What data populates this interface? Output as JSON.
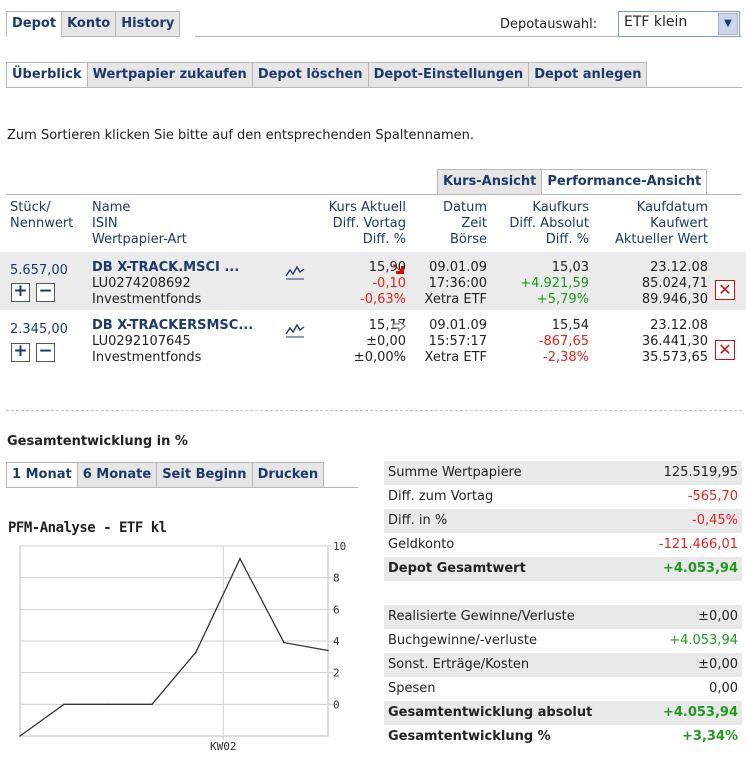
{
  "top_tabs": [
    "Depot",
    "Konto",
    "History"
  ],
  "depot_select": {
    "label": "Depotauswahl:",
    "value": "ETF klein"
  },
  "sub_tabs": [
    "Überblick",
    "Wertpapier zukaufen",
    "Depot löschen",
    "Depot-Einstellungen",
    "Depot anlegen"
  ],
  "sort_hint": "Zum Sortieren klicken Sie bitte auf den entsprechenden Spaltennamen.",
  "view_tabs": [
    "Kurs-Ansicht",
    "Performance-Ansicht"
  ],
  "headers": {
    "c1": [
      "Stück/",
      "Nennwert"
    ],
    "c2": [
      "Name",
      "ISIN",
      "Wertpapier-Art"
    ],
    "c3": [
      "Kurs Aktuell",
      "Diff. Vortag",
      "Diff. %"
    ],
    "c4": [
      "Datum",
      "Zeit",
      "Börse"
    ],
    "c5": [
      "Kaufkurs",
      "Diff. Absolut",
      "Diff. %"
    ],
    "c6": [
      "Kaufdatum",
      "Kaufwert",
      "Aktueller Wert"
    ]
  },
  "rows": [
    {
      "qty": "5.657,00",
      "name": "DB X-TRACK.MSCI ...",
      "isin": "LU0274208692",
      "type": "Investmentfonds",
      "kurs": "15,90",
      "diff_vortag": "-0,10",
      "diff_pct": "-0,63%",
      "datum": "09.01.09",
      "zeit": "17:36:00",
      "boerse": "Xetra ETF",
      "kaufkurs": "15,03",
      "diff_abs": "+4.921,59",
      "diff_abs_pct": "+5,79%",
      "kaufdatum": "23.12.08",
      "kaufwert": "85.024,71",
      "akt_wert": "89.946,30"
    },
    {
      "qty": "2.345,00",
      "name": "DB X-TRACKERSMSC...",
      "isin": "LU0292107645",
      "type": "Investmentfonds",
      "kurs": "15,17",
      "diff_vortag": "±0,00",
      "diff_pct": "±0,00%",
      "datum": "09.01.09",
      "zeit": "15:57:17",
      "boerse": "Xetra ETF",
      "kaufkurs": "15,54",
      "diff_abs": "-867,65",
      "diff_abs_pct": "-2,38%",
      "kaufdatum": "23.12.08",
      "kaufwert": "36.441,30",
      "akt_wert": "35.573,65"
    }
  ],
  "section_title": "Gesamtentwicklung in %",
  "period_tabs": [
    "1 Monat",
    "6 Monate",
    "Seit Beginn",
    "Drucken"
  ],
  "chart_data": {
    "type": "line",
    "title": "PFM-Analyse - ETF kl",
    "x": [
      0,
      1,
      2,
      3,
      4,
      5,
      6,
      7
    ],
    "values": [
      -2,
      0,
      0,
      0,
      3.3,
      9.2,
      3.9,
      3.4
    ],
    "yticks": [
      "10",
      "8",
      "6",
      "4",
      "2",
      "0"
    ],
    "ylim": [
      -2,
      10
    ],
    "xtick_label": "KW02",
    "grid": true
  },
  "summary1": [
    {
      "label": "Summe Wertpapiere",
      "value": "125.519,95",
      "color": "#222222",
      "bold": false
    },
    {
      "label": "Diff. zum Vortag",
      "value": "-565,70",
      "color": "#e0261f",
      "bold": false
    },
    {
      "label": "Diff. in %",
      "value": "-0,45%",
      "color": "#e0261f",
      "bold": false
    },
    {
      "label": "Geldkonto",
      "value": "-121.466,01",
      "color": "#e0261f",
      "bold": false
    },
    {
      "label": "Depot Gesamtwert",
      "value": "+4.053,94",
      "color": "#1f9a1f",
      "bold": true
    }
  ],
  "summary2": [
    {
      "label": "Realisierte Gewinne/Verluste",
      "value": "±0,00",
      "color": "#222222",
      "bold": false
    },
    {
      "label": "Buchgewinne/-verluste",
      "value": "+4.053,94",
      "color": "#1f9a1f",
      "bold": false
    },
    {
      "label": "Sonst. Erträge/Kosten",
      "value": "±0,00",
      "color": "#222222",
      "bold": false
    },
    {
      "label": "Spesen",
      "value": "0,00",
      "color": "#222222",
      "bold": false
    },
    {
      "label": "Gesamtentwicklung absolut",
      "value": "+4.053,94",
      "color": "#1f9a1f",
      "bold": true
    },
    {
      "label": "Gesamtentwicklung %",
      "value": "+3,34%",
      "color": "#1f9a1f",
      "bold": true
    }
  ],
  "colors": {
    "navy": "#1d3a6b",
    "red": "#e0261f",
    "green": "#1f9a1f",
    "tab_bg": "#e6e6e6"
  }
}
